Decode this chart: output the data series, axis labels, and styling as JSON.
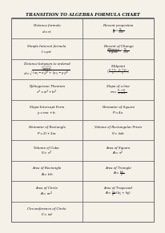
{
  "title": "TRANSITION TO ALGEBRA FORMULA CHART",
  "background_color": "#f5f0e8",
  "border_color": "#555555",
  "rows": [
    [
      "Distance formula\n$d = rt$",
      "Percent proportion\n$\\frac{a}{b} = \\frac{\\%}{100}$"
    ],
    [
      "Simple Interest formula\n$I = prt$",
      "Percent of Change\n$\\frac{difference}{original} = \\frac{\\%}{100}$"
    ],
    [
      "Distance between to ordered\npairs\n$d = \\sqrt{(x_1-x_2)^2+(y_1-y_2)^2}$",
      "Midpoint\n$\\left(\\frac{x_1+x_2}{2}, \\frac{y_1+y_2}{2}\\right)$"
    ],
    [
      "Pythagorean Theorem\n$c^2 = a^2 + b^2$",
      "Slope of a line\n$m = \\frac{y_2 - y_1}{x_2 - x_1}$"
    ],
    [
      "Slope-Intercept Form\n$y = mx + b$",
      "Perimeter of Square\n$P = 4s$"
    ],
    [
      "Perimeter of Rectangle\n$P = 2l + 2w$",
      "Volume of Rectangular Prism\n$V = lwh$"
    ],
    [
      "Volume of Cube\n$V = s^3$",
      "Area of Square\n$A = s^2$"
    ],
    [
      "Area of Rectangle\n$A = bh$",
      "Area of Triangle\n$A = \\frac{bh}{2}$"
    ],
    [
      "Area of Circle\n$A = \\pi r^2$",
      "Area of Trapezoid\n$A = \\frac{1}{2}h(b_1 + b_2)$"
    ],
    [
      "Circumference of Circle\n$C = \\pi d$",
      ""
    ]
  ]
}
